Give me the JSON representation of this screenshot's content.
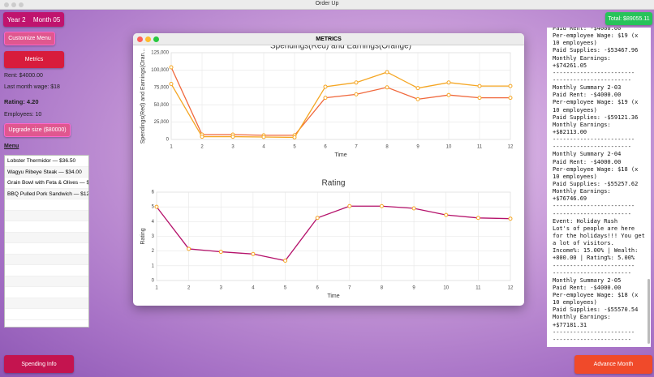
{
  "window_title": "Order Up",
  "header": {
    "year": "Year 2",
    "month": "Month 05",
    "total": "Total: $89055.11"
  },
  "sidebar": {
    "buttons": [
      "Customize Menu",
      "Metrics"
    ],
    "stats": [
      "Rent: $4000.00",
      "Last month wage: $18",
      "Rating: 4.20",
      "Employees: 10"
    ],
    "upgrade_button": "Upgrade size ($80000)",
    "menu_title": "Menu",
    "menu_items": [
      "Lobster Thermidor — $36.50",
      "Wagyu Ribeye Steak — $34.00",
      "Grain Bowl with Feta & Olives — $1",
      "BBQ Pulled Pork Sandwich — $12.0"
    ]
  },
  "log": [
    "Paid Rent: -$4000.00",
    "Per-employee Wage: $19 (x",
    "10 employees)",
    "Paid Supplies: -$53467.96",
    "Monthly Earnings:",
    "+$74261.05",
    "------------------------",
    "-----------------------",
    "Monthly Summary 2-03",
    "Paid Rent: -$4000.00",
    "Per-employee Wage: $19 (x",
    "10 employees)",
    "Paid Supplies: -$59121.36",
    "Monthly Earnings:",
    "+$82113.00",
    "------------------------",
    "-----------------------",
    "Monthly Summary 2-04",
    "Paid Rent: -$4000.00",
    "Per-employee Wage: $18 (x",
    "10 employees)",
    "Paid Supplies: -$55257.62",
    "Monthly Earnings:",
    "+$76746.69",
    "------------------------",
    "-----------------------",
    "Event: Holiday Rush",
    "Lot's of people are here",
    "for the holidays!!! You get",
    "a lot of visitors.",
    "Income%: 15.00% | Wealth:",
    "+800.00 | Rating%: 5.00%",
    "------------------------",
    "-----------------------",
    "Monthly Summary 2-05",
    "Paid Rent: -$4000.00",
    "Per-employee Wage: $18 (x",
    "10 employees)",
    "Paid Supplies: -$55570.54",
    "Monthly Earnings:",
    "+$77181.31",
    "------------------------",
    "-----------------------"
  ],
  "footer": {
    "spending_button": "Spending Info",
    "advance_button": "Advance Month"
  },
  "metrics_window": {
    "title": "METRICS"
  },
  "chart_data": [
    {
      "type": "line",
      "title": "Spendings(Red) and Earnings(Orange)",
      "y_label": "Spendings(Red) and Earnings(Oran...",
      "x_label": "Time",
      "x": [
        1,
        2,
        3,
        4,
        5,
        6,
        7,
        8,
        9,
        10,
        11,
        12
      ],
      "xlim": [
        1,
        12
      ],
      "xticks": [
        1,
        2,
        3,
        4,
        5,
        6,
        7,
        8,
        9,
        10,
        11,
        12
      ],
      "ylim": [
        0,
        125000
      ],
      "yticks": [
        0,
        {
          "value": 25000,
          "label": "25,000"
        },
        {
          "value": 50000,
          "label": "50,000"
        },
        {
          "value": 75000,
          "label": "75,000"
        },
        {
          "value": 100000,
          "label": "100,000"
        },
        {
          "value": 125000,
          "label": "125,000"
        }
      ],
      "grid": true,
      "marker_color": "#f5a623",
      "series": [
        {
          "color": "#f0683c",
          "values": [
            104000,
            7000,
            7000,
            6000,
            6000,
            60000,
            65000,
            75000,
            58000,
            64000,
            60000,
            60000
          ]
        },
        {
          "color": "#f5a623",
          "values": [
            80000,
            4000,
            4000,
            3500,
            3000,
            76000,
            82000,
            97000,
            74000,
            82000,
            77000,
            77000
          ]
        }
      ]
    },
    {
      "type": "line",
      "title": "Rating",
      "y_label": "Rating",
      "x_label": "Time",
      "x": [
        1,
        2,
        3,
        4,
        5,
        6,
        7,
        8,
        9,
        10,
        11,
        12
      ],
      "xlim": [
        1,
        12
      ],
      "xticks": [
        1,
        2,
        3,
        4,
        5,
        6,
        7,
        8,
        9,
        10,
        11,
        12
      ],
      "ylim": [
        0,
        6
      ],
      "yticks": [
        0,
        1,
        2,
        3,
        4,
        5,
        6
      ],
      "grid": true,
      "marker_color": "#f5a623",
      "series": [
        {
          "color": "#b5126b",
          "values": [
            5.0,
            2.15,
            1.95,
            1.8,
            1.35,
            4.25,
            5.05,
            5.05,
            4.9,
            4.45,
            4.25,
            4.2
          ]
        }
      ]
    }
  ]
}
